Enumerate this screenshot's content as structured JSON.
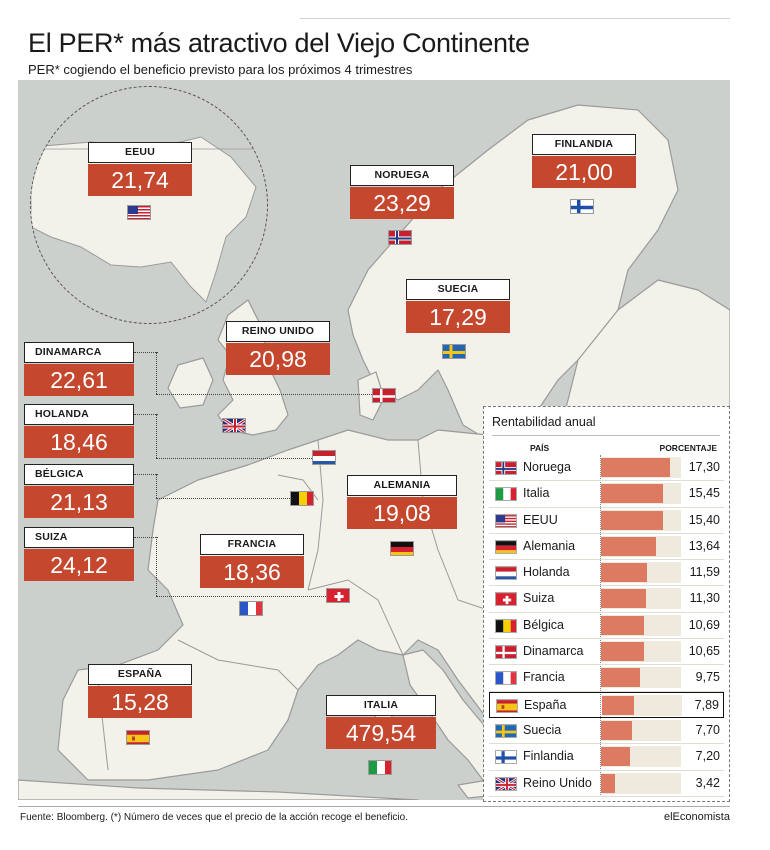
{
  "header": {
    "title": "El PER* más atractivo del Viejo Continente",
    "subtitle": "PER* cogiendo el beneficio previsto para los próximos 4 trimestres"
  },
  "map_callouts": [
    {
      "id": "eeuu",
      "name": "EEUU",
      "value": "21,74",
      "flag": "us-flag"
    },
    {
      "id": "noruega",
      "name": "NORUEGA",
      "value": "23,29",
      "flag": "norway-flag"
    },
    {
      "id": "finlandia",
      "name": "FINLANDIA",
      "value": "21,00",
      "flag": "finland-flag"
    },
    {
      "id": "suecia",
      "name": "SUECIA",
      "value": "17,29",
      "flag": "sweden-flag"
    },
    {
      "id": "reino-unido",
      "name": "REINO UNIDO",
      "value": "20,98",
      "flag": "uk-flag"
    },
    {
      "id": "dinamarca",
      "name": "DINAMARCA",
      "value": "22,61",
      "flag": "denmark-flag"
    },
    {
      "id": "holanda",
      "name": "HOLANDA",
      "value": "18,46",
      "flag": "netherlands-flag"
    },
    {
      "id": "belgica",
      "name": "BÉLGICA",
      "value": "21,13",
      "flag": "belgium-flag"
    },
    {
      "id": "suiza",
      "name": "SUIZA",
      "value": "24,12",
      "flag": "switzerland-flag"
    },
    {
      "id": "alemania",
      "name": "ALEMANIA",
      "value": "19,08",
      "flag": "germany-flag"
    },
    {
      "id": "francia",
      "name": "FRANCIA",
      "value": "18,36",
      "flag": "france-flag"
    },
    {
      "id": "espana",
      "name": "ESPAÑA",
      "value": "15,28",
      "flag": "spain-flag"
    },
    {
      "id": "italia",
      "name": "ITALIA",
      "value": "479,54",
      "flag": "italy-flag"
    }
  ],
  "chart_data": {
    "type": "bar",
    "title": "Rentabilidad anual",
    "column_headers": [
      "PAÍS",
      "PORCENTAJE"
    ],
    "categories": [
      "Noruega",
      "Italia",
      "EEUU",
      "Alemania",
      "Holanda",
      "Suiza",
      "Bélgica",
      "Dinamarca",
      "Francia",
      "España",
      "Suecia",
      "Finlandia",
      "Reino Unido"
    ],
    "values": [
      17.3,
      15.45,
      15.4,
      13.64,
      11.59,
      11.3,
      10.69,
      10.65,
      9.75,
      7.89,
      7.7,
      7.2,
      3.42
    ],
    "value_labels": [
      "17,30",
      "15,45",
      "15,40",
      "13,64",
      "11,59",
      "11,30",
      "10,69",
      "10,65",
      "9,75",
      "7,89",
      "7,70",
      "7,20",
      "3,42"
    ],
    "flags": [
      "norway-flag",
      "italy-flag",
      "us-flag",
      "germany-flag",
      "netherlands-flag",
      "switzerland-flag",
      "belgium-flag",
      "denmark-flag",
      "france-flag",
      "spain-flag",
      "sweden-flag",
      "finland-flag",
      "uk-flag"
    ],
    "highlighted": "España",
    "xlim": [
      0,
      20
    ],
    "bar_color": "#dd7b62",
    "track_color": "#efeadd"
  },
  "colors": {
    "value_box": "#c4472e",
    "land": "#f2f1ea",
    "sea": "#ccd0cc",
    "border": "#9a9a9a"
  },
  "footer": {
    "source": "Fuente: Bloomberg. (*) Número de veces que el precio de la acción recoge el beneficio.",
    "brand": "elEconomista"
  }
}
